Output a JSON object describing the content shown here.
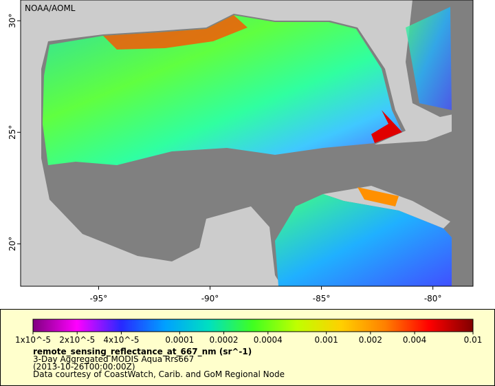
{
  "map": {
    "title": "NOAA/AOML",
    "lon_range": [
      -98.5,
      -78.2
    ],
    "lat_range": [
      18.1,
      30.93
    ],
    "lon_ticks": [
      {
        "value": -95,
        "label": "-95°"
      },
      {
        "value": -90,
        "label": "-90°"
      },
      {
        "value": -85,
        "label": "-85°"
      },
      {
        "value": -80,
        "label": "-80°"
      }
    ],
    "lat_ticks": [
      {
        "value": 20,
        "label": "20°"
      },
      {
        "value": 25,
        "label": "25°"
      },
      {
        "value": 30,
        "label": "30°"
      }
    ]
  },
  "colorbar": {
    "scale": "log",
    "range": [
      1e-05,
      0.01
    ],
    "colors": [
      "#800080",
      "#ff00ff",
      "#2828ff",
      "#00a0ff",
      "#00e0c0",
      "#40ff20",
      "#c0ff00",
      "#ffd000",
      "#ff8000",
      "#ff0000",
      "#800000"
    ],
    "ticks": [
      {
        "value": 1e-05,
        "label": "1x10^-5"
      },
      {
        "value": 2e-05,
        "label": "2x10^-5"
      },
      {
        "value": 4e-05,
        "label": "4x10^-5"
      },
      0.0001,
      0.0002,
      0.0004,
      0.001,
      0.002,
      0.004,
      0.01
    ]
  },
  "caption": {
    "variable": "remote_sensing_reflectance_at_667_nm (sr^-1)",
    "lines": [
      "3-Day Aggregated MODIS Aqua Rrs667",
      "(2013-10-26T00:00:00Z)",
      "Data courtesy of CoastWatch, Carib. and GoM Regional Node"
    ]
  }
}
